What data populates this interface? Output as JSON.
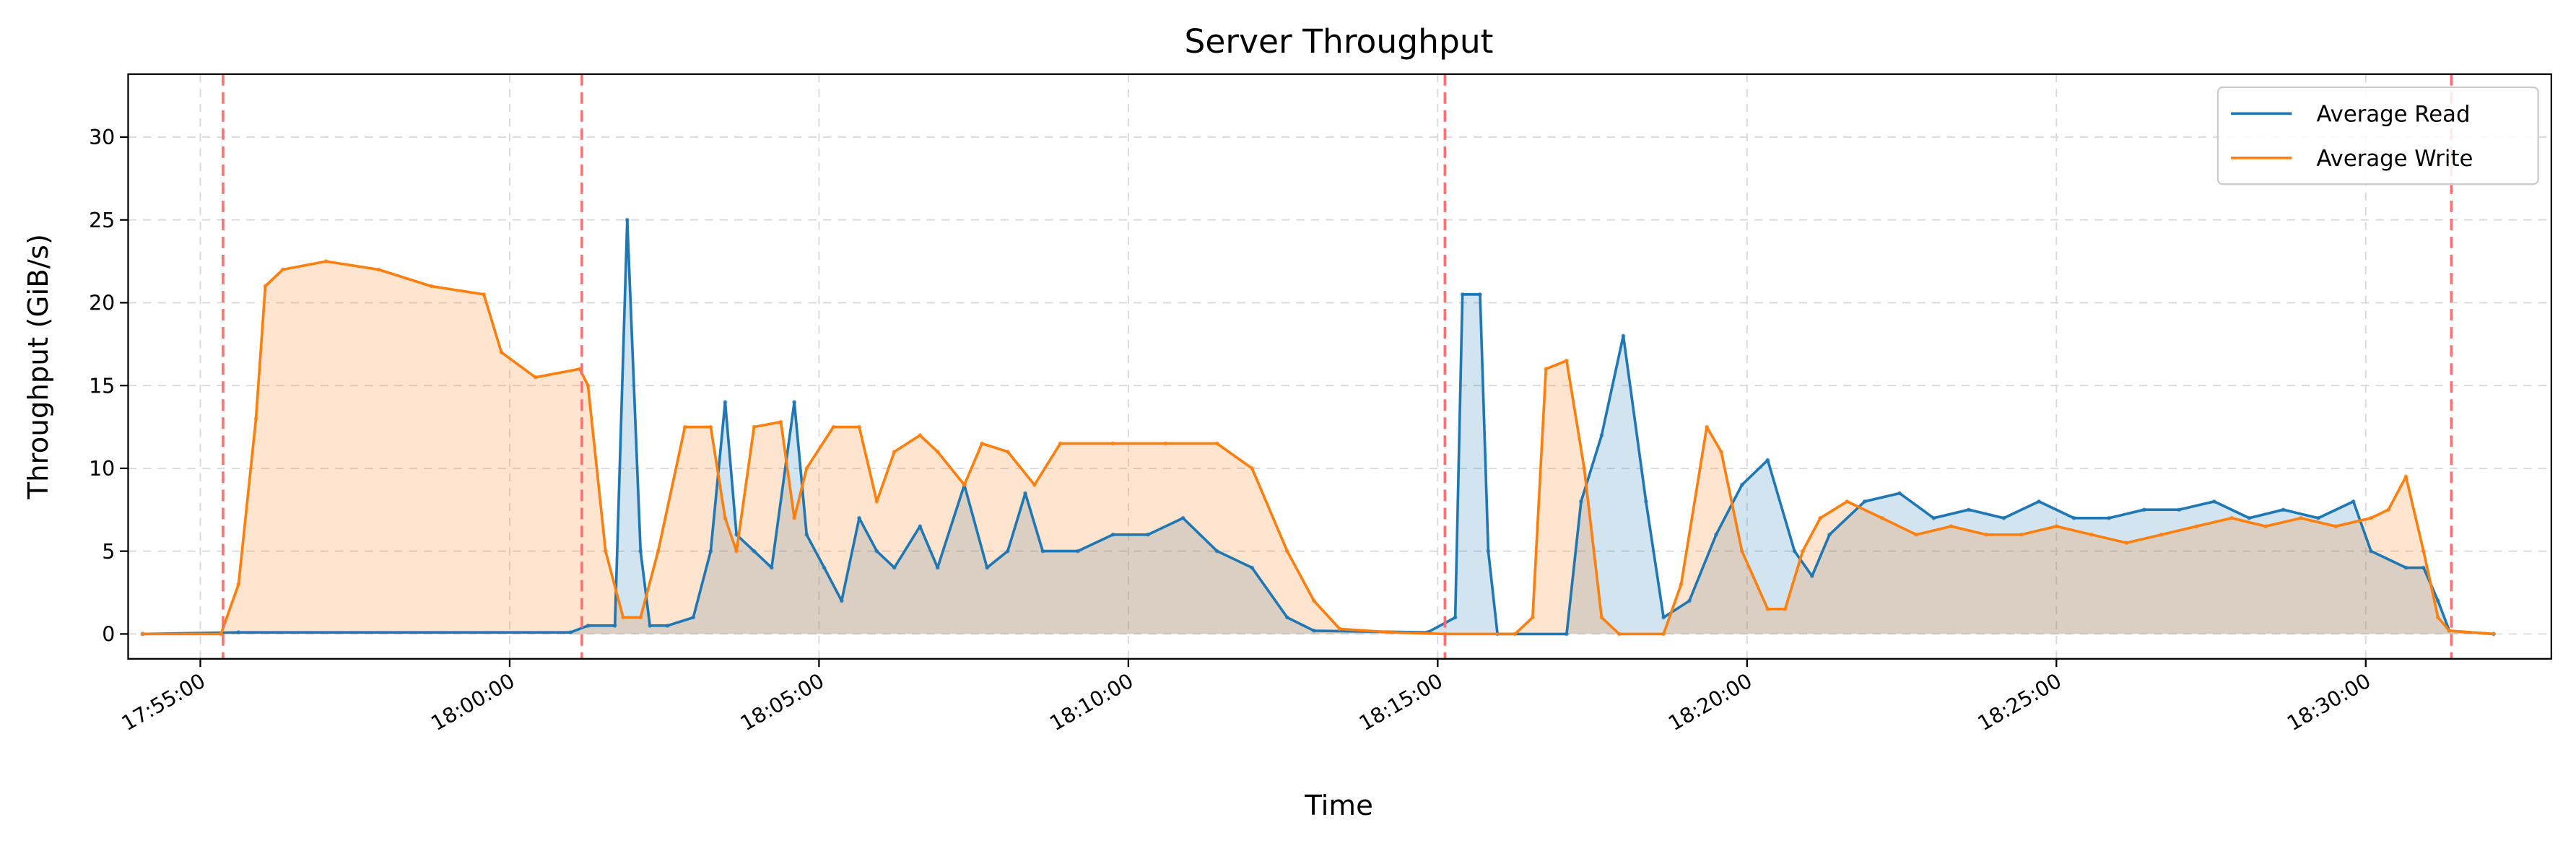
{
  "chart_data": {
    "type": "line",
    "title": "Server Throughput",
    "xlabel": "Time",
    "ylabel": "Throughput (GiB/s)",
    "ylim": [
      -1.5,
      33.8
    ],
    "xlim": [
      "17:53:50",
      "18:33:00"
    ],
    "yticks": [
      0,
      5,
      10,
      15,
      20,
      25,
      30
    ],
    "xticks": [
      "17:55:00",
      "18:00:00",
      "18:05:00",
      "18:10:00",
      "18:15:00",
      "18:20:00",
      "18:25:00",
      "18:30:00"
    ],
    "grid": true,
    "legend_position": "top-right",
    "vertical_markers": [
      "17:55:22",
      "18:01:10",
      "18:15:07",
      "18:31:23"
    ],
    "vertical_marker_color": "#ff6b6b",
    "series": [
      {
        "name": "Average Read",
        "color": "#1f77b4",
        "filled": true,
        "x": [
          "17:54:04",
          "17:55:37",
          "18:00:59",
          "18:01:16",
          "18:01:42",
          "18:01:54",
          "18:02:07",
          "18:02:16",
          "18:02:33",
          "18:02:58",
          "18:03:15",
          "18:03:29",
          "18:03:40",
          "18:03:57",
          "18:04:14",
          "18:04:36",
          "18:04:48",
          "18:05:05",
          "18:05:22",
          "18:05:39",
          "18:05:56",
          "18:06:13",
          "18:06:38",
          "18:06:55",
          "18:07:21",
          "18:07:43",
          "18:08:03",
          "18:08:20",
          "18:08:37",
          "18:09:11",
          "18:09:45",
          "18:10:19",
          "18:10:53",
          "18:11:26",
          "18:12:00",
          "18:12:34",
          "18:13:00",
          "18:14:50",
          "18:15:17",
          "18:15:24",
          "18:15:41",
          "18:15:49",
          "18:15:58",
          "18:17:05",
          "18:17:19",
          "18:17:39",
          "18:18:00",
          "18:18:22",
          "18:18:39",
          "18:19:04",
          "18:19:30",
          "18:19:55",
          "18:20:20",
          "18:20:46",
          "18:21:03",
          "18:21:20",
          "18:21:54",
          "18:22:28",
          "18:23:01",
          "18:23:35",
          "18:24:09",
          "18:24:43",
          "18:25:17",
          "18:25:51",
          "18:26:25",
          "18:26:59",
          "18:27:33",
          "18:28:07",
          "18:28:40",
          "18:29:14",
          "18:29:48",
          "18:30:05",
          "18:30:39",
          "18:30:56",
          "18:31:10",
          "18:31:21",
          "18:32:04"
        ],
        "values": [
          0,
          0.1,
          0.1,
          0.5,
          0.5,
          25,
          5,
          0.5,
          0.5,
          1,
          5,
          14,
          6,
          5,
          4,
          14,
          6,
          4,
          2,
          7,
          5,
          4,
          6.5,
          4,
          9,
          4,
          5,
          8.5,
          5,
          5,
          6,
          6,
          7,
          5,
          4,
          1,
          0.2,
          0.1,
          1,
          20.5,
          20.5,
          5,
          0,
          0,
          8,
          12,
          18,
          8,
          1,
          2,
          6,
          9,
          10.5,
          5,
          3.5,
          6,
          8,
          8.5,
          7,
          7.5,
          7,
          8,
          7,
          7,
          7.5,
          7.5,
          8,
          7,
          7.5,
          7,
          8,
          5,
          4,
          4,
          2,
          0.2,
          0
        ]
      },
      {
        "name": "Average Write",
        "color": "#ff7f0e",
        "filled": true,
        "x": [
          "17:54:04",
          "17:55:20",
          "17:55:37",
          "17:55:54",
          "17:56:03",
          "17:56:20",
          "17:57:02",
          "17:57:53",
          "17:58:44",
          "17:59:35",
          "17:59:52",
          "18:00:25",
          "18:01:08",
          "18:01:16",
          "18:01:33",
          "18:01:50",
          "18:02:07",
          "18:02:24",
          "18:02:50",
          "18:03:15",
          "18:03:29",
          "18:03:40",
          "18:03:57",
          "18:04:23",
          "18:04:36",
          "18:04:48",
          "18:05:14",
          "18:05:39",
          "18:05:56",
          "18:06:13",
          "18:06:38",
          "18:06:55",
          "18:07:21",
          "18:07:38",
          "18:08:03",
          "18:08:29",
          "18:08:54",
          "18:09:45",
          "18:10:36",
          "18:11:26",
          "18:12:00",
          "18:12:34",
          "18:13:00",
          "18:13:25",
          "18:14:16",
          "18:15:07",
          "18:16:15",
          "18:16:32",
          "18:16:45",
          "18:17:05",
          "18:17:22",
          "18:17:39",
          "18:17:56",
          "18:18:39",
          "18:18:56",
          "18:19:21",
          "18:19:35",
          "18:19:55",
          "18:20:20",
          "18:20:37",
          "18:20:54",
          "18:21:11",
          "18:21:37",
          "18:22:11",
          "18:22:44",
          "18:23:18",
          "18:23:52",
          "18:24:26",
          "18:25:00",
          "18:25:34",
          "18:26:08",
          "18:26:42",
          "18:27:16",
          "18:27:50",
          "18:28:23",
          "18:28:57",
          "18:29:31",
          "18:30:05",
          "18:30:22",
          "18:30:39",
          "18:30:56",
          "18:31:10",
          "18:31:21",
          "18:32:04"
        ],
        "values": [
          0,
          0,
          3,
          13,
          21,
          22,
          22.5,
          22,
          21,
          20.5,
          17,
          15.5,
          16,
          15,
          5,
          1,
          1,
          5,
          12.5,
          12.5,
          7,
          5,
          12.5,
          12.8,
          7,
          10,
          12.5,
          12.5,
          8,
          11,
          12,
          11,
          9,
          11.5,
          11,
          9,
          11.5,
          11.5,
          11.5,
          11.5,
          10,
          5,
          2,
          0.3,
          0.1,
          0,
          0,
          1,
          16,
          16.5,
          10,
          1,
          0,
          0,
          3,
          12.5,
          11,
          5,
          1.5,
          1.5,
          5,
          7,
          8,
          7,
          6,
          6.5,
          6,
          6,
          6.5,
          6,
          5.5,
          6,
          6.5,
          7,
          6.5,
          7,
          6.5,
          7,
          7.5,
          9.5,
          5,
          1,
          0.2,
          0
        ]
      }
    ]
  }
}
